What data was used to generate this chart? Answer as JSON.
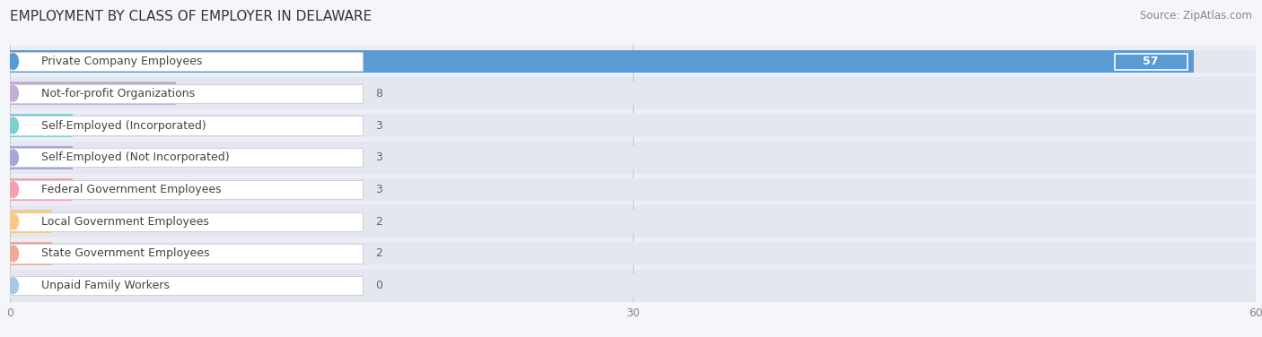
{
  "title": "EMPLOYMENT BY CLASS OF EMPLOYER IN DELAWARE",
  "source": "Source: ZipAtlas.com",
  "categories": [
    "Private Company Employees",
    "Not-for-profit Organizations",
    "Self-Employed (Incorporated)",
    "Self-Employed (Not Incorporated)",
    "Federal Government Employees",
    "Local Government Employees",
    "State Government Employees",
    "Unpaid Family Workers"
  ],
  "values": [
    57,
    8,
    3,
    3,
    3,
    2,
    2,
    0
  ],
  "bar_colors": [
    "#5b9bd5",
    "#c4afd4",
    "#7ecfcf",
    "#a8a8d8",
    "#f4a0b0",
    "#f9c98a",
    "#f0a898",
    "#a8c8e8"
  ],
  "bar_bg_color": "#e4e6f0",
  "xlim": [
    0,
    60
  ],
  "xticks": [
    0,
    30,
    60
  ],
  "bar_height": 0.72,
  "label_color": "#444444",
  "value_color_inside": "#ffffff",
  "value_color_outside": "#666666",
  "title_fontsize": 11,
  "label_fontsize": 9.0,
  "value_fontsize": 9.0,
  "background_color": "#f5f6fa",
  "row_bg_colors": [
    "#edeef5",
    "#e4e6f0"
  ]
}
